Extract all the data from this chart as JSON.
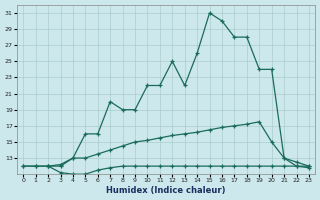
{
  "xlabel": "Humidex (Indice chaleur)",
  "bg_color": "#cce8ec",
  "grid_color": "#aacccc",
  "line_color": "#1a6b5a",
  "xlim_min": -0.5,
  "xlim_max": 23.5,
  "ylim_min": 11,
  "ylim_max": 32,
  "yticks": [
    13,
    15,
    17,
    19,
    21,
    23,
    25,
    27,
    29,
    31
  ],
  "xticks": [
    0,
    1,
    2,
    3,
    4,
    5,
    6,
    7,
    8,
    9,
    10,
    11,
    12,
    13,
    14,
    15,
    16,
    17,
    18,
    19,
    20,
    21,
    22,
    23
  ],
  "curve1_x": [
    0,
    1,
    2,
    3,
    4,
    5,
    6,
    7,
    8,
    9,
    10,
    11,
    12,
    13,
    14,
    15,
    16,
    17,
    18,
    19,
    20,
    21,
    22,
    23
  ],
  "curve1_y": [
    12,
    12,
    12,
    11.2,
    11,
    11,
    11.5,
    11.8,
    12,
    12,
    12,
    12,
    12,
    12,
    12,
    12,
    12,
    12,
    12,
    12,
    12,
    12,
    12,
    11.8
  ],
  "curve2_x": [
    0,
    1,
    2,
    3,
    4,
    5,
    6,
    7,
    8,
    9,
    10,
    11,
    12,
    13,
    14,
    15,
    16,
    17,
    18,
    19,
    20,
    21,
    22,
    23
  ],
  "curve2_y": [
    12,
    12,
    12,
    12.2,
    13,
    13,
    13.5,
    14,
    14.5,
    15,
    15.2,
    15.5,
    15.8,
    16,
    16.2,
    16.5,
    16.8,
    17,
    17.2,
    17.5,
    15,
    13,
    12.5,
    12
  ],
  "curve3_x": [
    2,
    3,
    4,
    5,
    6,
    7,
    8,
    9,
    10,
    11,
    12,
    13,
    14,
    15,
    16,
    17,
    18,
    19,
    20,
    21,
    22,
    23
  ],
  "curve3_y": [
    12,
    12,
    13,
    16,
    16,
    20,
    19,
    19,
    22,
    22,
    25,
    22,
    26,
    31,
    30,
    28,
    28,
    24,
    24,
    13,
    12,
    12
  ]
}
